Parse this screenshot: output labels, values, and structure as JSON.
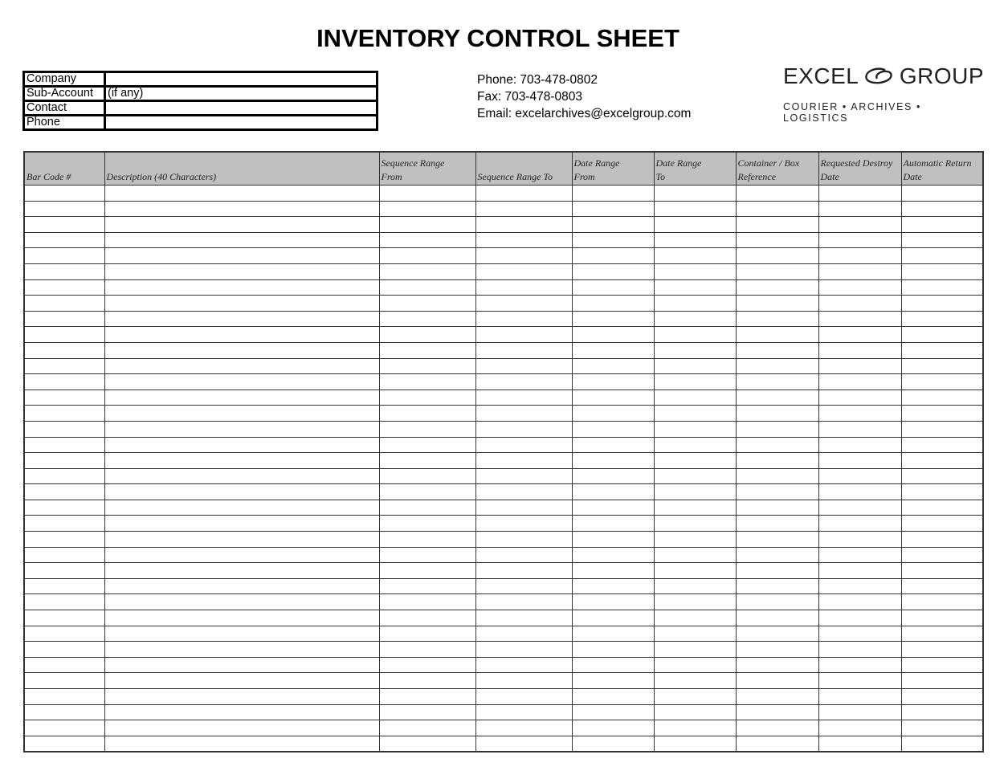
{
  "title": "INVENTORY CONTROL SHEET",
  "info": [
    {
      "label": "Company",
      "value": ""
    },
    {
      "label": "Sub-Account",
      "value": "(if any)"
    },
    {
      "label": "Contact",
      "value": ""
    },
    {
      "label": "Phone",
      "value": ""
    }
  ],
  "contact": {
    "phone": "Phone:  703-478-0802",
    "fax": "Fax:  703-478-0803",
    "email": "Email: excelarchives@excelgroup.com"
  },
  "logo": {
    "left": "EXCEL",
    "right": "GROUP",
    "tagline": "COURIER • ARCHIVES • LOGISTICS",
    "icon": "swirl-logo-icon"
  },
  "columns": [
    {
      "line1": "",
      "line2": "Bar Code #"
    },
    {
      "line1": "",
      "line2": "Description (40 Characters)"
    },
    {
      "line1": "Sequence Range",
      "line2": "From"
    },
    {
      "line1": "",
      "line2": "Sequence Range To"
    },
    {
      "line1": "Date Range",
      "line2": "From"
    },
    {
      "line1": "Date Range",
      "line2": "To"
    },
    {
      "line1": "Container / Box",
      "line2": "Reference"
    },
    {
      "line1": "Requested Destroy",
      "line2": "Date"
    },
    {
      "line1": "Automatic Return",
      "line2": "Date"
    }
  ],
  "rows": [
    [],
    [],
    [],
    [],
    [],
    [],
    [],
    [],
    [],
    [],
    [],
    [],
    [],
    [],
    [],
    [],
    [],
    [],
    [],
    [],
    [],
    [],
    [],
    [],
    [],
    [],
    [],
    [],
    [],
    [],
    [],
    [],
    [],
    [],
    [],
    []
  ]
}
